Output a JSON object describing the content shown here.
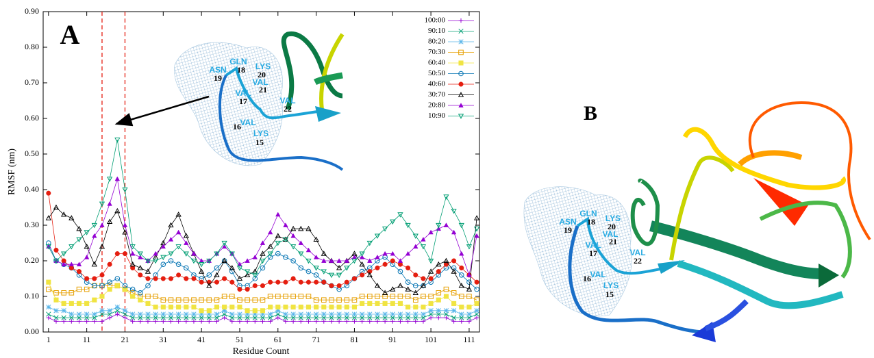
{
  "chart_data": {
    "type": "line",
    "panel_labels": [
      "A",
      "B"
    ],
    "xlabel": "Residue Count",
    "ylabel": "RMSF (nm)",
    "xlim": [
      -0.4,
      113.7
    ],
    "ylim": [
      0,
      0.9
    ],
    "xticks": [
      1,
      11,
      21,
      31,
      41,
      51,
      61,
      71,
      81,
      91,
      101,
      111
    ],
    "yticks": [
      {
        "value": 0,
        "label": "0.00"
      },
      {
        "value": 0.1,
        "label": "0.10"
      },
      {
        "value": 0.2,
        "label": "0.20"
      },
      {
        "value": 0.3,
        "label": "0.30"
      },
      {
        "value": 0.4,
        "label": "0.40"
      },
      {
        "value": 0.5,
        "label": "0.50"
      },
      {
        "value": 0.6,
        "label": "0.60"
      },
      {
        "value": 0.7,
        "label": "0.70"
      },
      {
        "value": 0.8,
        "label": "0.80"
      },
      {
        "value": 0.9,
        "label": "0.90"
      }
    ],
    "legend": "top-right",
    "vlines": [
      15,
      21
    ],
    "vline_color": "#e51e10",
    "residue_labels": [
      {
        "name": "ASN",
        "number": 19
      },
      {
        "name": "GLN",
        "number": 18
      },
      {
        "name": "LYS",
        "number": 20
      },
      {
        "name": "VAL",
        "number": 21
      },
      {
        "name": "VAL",
        "number": 17
      },
      {
        "name": "VAL",
        "number": 22
      },
      {
        "name": "VAL",
        "number": 16
      },
      {
        "name": "LYS",
        "number": 15
      }
    ],
    "x": [
      1,
      3,
      5,
      7,
      9,
      11,
      13,
      15,
      17,
      19,
      21,
      23,
      25,
      27,
      29,
      31,
      33,
      35,
      37,
      39,
      41,
      43,
      45,
      47,
      49,
      51,
      53,
      55,
      57,
      59,
      61,
      63,
      65,
      67,
      69,
      71,
      73,
      75,
      77,
      79,
      81,
      83,
      85,
      87,
      89,
      91,
      93,
      95,
      97,
      99,
      101,
      103,
      105,
      107,
      109,
      111,
      113
    ],
    "series": [
      {
        "name": "100:00",
        "color": "#9400d3",
        "marker": "plus",
        "values": [
          0.04,
          0.03,
          0.03,
          0.03,
          0.03,
          0.03,
          0.03,
          0.03,
          0.04,
          0.05,
          0.04,
          0.03,
          0.03,
          0.03,
          0.03,
          0.03,
          0.03,
          0.03,
          0.03,
          0.03,
          0.03,
          0.03,
          0.03,
          0.04,
          0.03,
          0.03,
          0.03,
          0.03,
          0.03,
          0.03,
          0.04,
          0.03,
          0.03,
          0.03,
          0.03,
          0.03,
          0.03,
          0.03,
          0.03,
          0.03,
          0.03,
          0.03,
          0.03,
          0.03,
          0.03,
          0.03,
          0.03,
          0.03,
          0.03,
          0.03,
          0.04,
          0.04,
          0.04,
          0.03,
          0.03,
          0.03,
          0.04
        ]
      },
      {
        "name": "90:10",
        "color": "#009e73",
        "marker": "cross",
        "values": [
          0.05,
          0.04,
          0.04,
          0.04,
          0.04,
          0.04,
          0.04,
          0.05,
          0.05,
          0.06,
          0.05,
          0.04,
          0.04,
          0.04,
          0.04,
          0.04,
          0.04,
          0.04,
          0.04,
          0.04,
          0.04,
          0.04,
          0.04,
          0.05,
          0.04,
          0.04,
          0.04,
          0.04,
          0.04,
          0.04,
          0.05,
          0.04,
          0.04,
          0.04,
          0.04,
          0.04,
          0.04,
          0.04,
          0.04,
          0.04,
          0.04,
          0.04,
          0.04,
          0.04,
          0.04,
          0.04,
          0.04,
          0.04,
          0.04,
          0.04,
          0.05,
          0.05,
          0.05,
          0.04,
          0.04,
          0.04,
          0.05
        ]
      },
      {
        "name": "80:20",
        "color": "#56b4e9",
        "marker": "star",
        "values": [
          0.07,
          0.06,
          0.06,
          0.05,
          0.05,
          0.05,
          0.05,
          0.06,
          0.06,
          0.07,
          0.06,
          0.05,
          0.05,
          0.05,
          0.05,
          0.05,
          0.05,
          0.05,
          0.05,
          0.05,
          0.05,
          0.05,
          0.05,
          0.06,
          0.05,
          0.05,
          0.05,
          0.05,
          0.05,
          0.05,
          0.06,
          0.05,
          0.05,
          0.05,
          0.05,
          0.05,
          0.05,
          0.05,
          0.05,
          0.05,
          0.05,
          0.05,
          0.05,
          0.05,
          0.05,
          0.05,
          0.05,
          0.05,
          0.05,
          0.05,
          0.06,
          0.06,
          0.06,
          0.06,
          0.05,
          0.05,
          0.06
        ]
      },
      {
        "name": "70:30",
        "color": "#e69f00",
        "marker": "square-open",
        "values": [
          0.12,
          0.11,
          0.11,
          0.11,
          0.12,
          0.12,
          0.13,
          0.13,
          0.13,
          0.13,
          0.12,
          0.11,
          0.1,
          0.1,
          0.1,
          0.09,
          0.09,
          0.09,
          0.09,
          0.09,
          0.09,
          0.09,
          0.09,
          0.1,
          0.1,
          0.09,
          0.09,
          0.09,
          0.09,
          0.1,
          0.1,
          0.1,
          0.1,
          0.1,
          0.1,
          0.09,
          0.09,
          0.09,
          0.09,
          0.09,
          0.09,
          0.1,
          0.1,
          0.1,
          0.1,
          0.1,
          0.1,
          0.1,
          0.09,
          0.1,
          0.1,
          0.11,
          0.12,
          0.11,
          0.1,
          0.1,
          0.09
        ]
      },
      {
        "name": "60:40",
        "color": "#f0e442",
        "marker": "square",
        "values": [
          0.14,
          0.09,
          0.08,
          0.08,
          0.08,
          0.08,
          0.09,
          0.1,
          0.12,
          0.13,
          0.12,
          0.1,
          0.09,
          0.08,
          0.07,
          0.07,
          0.07,
          0.07,
          0.07,
          0.07,
          0.06,
          0.06,
          0.07,
          0.07,
          0.07,
          0.07,
          0.06,
          0.06,
          0.06,
          0.07,
          0.07,
          0.07,
          0.07,
          0.07,
          0.07,
          0.07,
          0.07,
          0.07,
          0.07,
          0.07,
          0.07,
          0.08,
          0.08,
          0.08,
          0.08,
          0.08,
          0.08,
          0.07,
          0.07,
          0.07,
          0.08,
          0.09,
          0.1,
          0.08,
          0.07,
          0.07,
          0.08
        ]
      },
      {
        "name": "50:50",
        "color": "#0072b2",
        "marker": "circle-open",
        "values": [
          0.25,
          0.2,
          0.19,
          0.18,
          0.16,
          0.14,
          0.13,
          0.13,
          0.14,
          0.15,
          0.13,
          0.12,
          0.11,
          0.13,
          0.16,
          0.19,
          0.2,
          0.19,
          0.18,
          0.16,
          0.15,
          0.16,
          0.18,
          0.2,
          0.17,
          0.13,
          0.13,
          0.15,
          0.18,
          0.21,
          0.22,
          0.21,
          0.2,
          0.18,
          0.17,
          0.16,
          0.14,
          0.13,
          0.12,
          0.13,
          0.15,
          0.17,
          0.18,
          0.2,
          0.21,
          0.19,
          0.17,
          0.14,
          0.13,
          0.13,
          0.14,
          0.16,
          0.18,
          0.18,
          0.16,
          0.14,
          0.12
        ]
      },
      {
        "name": "40:60",
        "color": "#e51e10",
        "marker": "circle",
        "values": [
          0.39,
          0.23,
          0.2,
          0.18,
          0.17,
          0.15,
          0.15,
          0.16,
          0.19,
          0.22,
          0.22,
          0.18,
          0.16,
          0.15,
          0.15,
          0.15,
          0.15,
          0.16,
          0.15,
          0.15,
          0.14,
          0.14,
          0.14,
          0.15,
          0.14,
          0.12,
          0.12,
          0.13,
          0.13,
          0.14,
          0.14,
          0.14,
          0.15,
          0.14,
          0.14,
          0.14,
          0.14,
          0.13,
          0.13,
          0.14,
          0.15,
          0.16,
          0.17,
          0.18,
          0.19,
          0.2,
          0.19,
          0.18,
          0.16,
          0.15,
          0.15,
          0.17,
          0.19,
          0.2,
          0.18,
          0.16,
          0.14
        ]
      },
      {
        "name": "30:70",
        "color": "#000000",
        "marker": "triangle-open",
        "values": [
          0.32,
          0.35,
          0.33,
          0.32,
          0.29,
          0.24,
          0.19,
          0.24,
          0.31,
          0.34,
          0.28,
          0.19,
          0.18,
          0.17,
          0.21,
          0.25,
          0.3,
          0.33,
          0.27,
          0.22,
          0.17,
          0.13,
          0.16,
          0.2,
          0.18,
          0.15,
          0.16,
          0.17,
          0.22,
          0.24,
          0.27,
          0.26,
          0.29,
          0.29,
          0.29,
          0.26,
          0.22,
          0.2,
          0.18,
          0.2,
          0.22,
          0.19,
          0.16,
          0.13,
          0.11,
          0.12,
          0.13,
          0.12,
          0.11,
          0.13,
          0.17,
          0.19,
          0.2,
          0.17,
          0.13,
          0.12,
          0.32
        ]
      },
      {
        "name": "20:80",
        "color": "#9400d3",
        "marker": "triangle",
        "values": [
          0.24,
          0.2,
          0.19,
          0.19,
          0.19,
          0.21,
          0.27,
          0.3,
          0.36,
          0.43,
          0.3,
          0.22,
          0.21,
          0.2,
          0.22,
          0.24,
          0.26,
          0.28,
          0.25,
          0.22,
          0.2,
          0.2,
          0.22,
          0.24,
          0.22,
          0.19,
          0.2,
          0.21,
          0.25,
          0.28,
          0.33,
          0.3,
          0.27,
          0.25,
          0.23,
          0.21,
          0.2,
          0.2,
          0.2,
          0.2,
          0.21,
          0.21,
          0.2,
          0.21,
          0.22,
          0.22,
          0.2,
          0.22,
          0.24,
          0.26,
          0.28,
          0.29,
          0.3,
          0.28,
          0.22,
          0.16,
          0.27
        ]
      },
      {
        "name": "10:90",
        "color": "#009e73",
        "marker": "triangle-down-open",
        "values": [
          0.24,
          0.2,
          0.22,
          0.24,
          0.26,
          0.28,
          0.3,
          0.36,
          0.43,
          0.54,
          0.4,
          0.24,
          0.22,
          0.2,
          0.2,
          0.21,
          0.22,
          0.24,
          0.22,
          0.2,
          0.19,
          0.2,
          0.22,
          0.25,
          0.22,
          0.18,
          0.17,
          0.16,
          0.2,
          0.22,
          0.25,
          0.26,
          0.24,
          0.22,
          0.2,
          0.18,
          0.17,
          0.16,
          0.16,
          0.18,
          0.2,
          0.22,
          0.25,
          0.27,
          0.29,
          0.31,
          0.33,
          0.3,
          0.27,
          0.24,
          0.2,
          0.3,
          0.38,
          0.34,
          0.3,
          0.24,
          0.29
        ]
      }
    ]
  }
}
